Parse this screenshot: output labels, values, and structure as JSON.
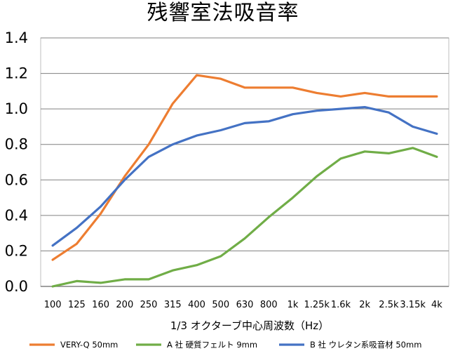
{
  "chart_data": {
    "type": "line",
    "title": "残響室法吸音率",
    "xlabel": "1/3 オクターブ中心周波数（Hz）",
    "ylabel": "",
    "categories": [
      "100",
      "125",
      "160",
      "200",
      "250",
      "315",
      "400",
      "500",
      "630",
      "800",
      "1k",
      "1.25k",
      "1.6k",
      "2k",
      "2.5k",
      "3.15k",
      "4k"
    ],
    "ylim": [
      0,
      1.4
    ],
    "yticks": [
      "0.0",
      "0.2",
      "0.4",
      "0.6",
      "0.8",
      "1.0",
      "1.2",
      "1.4"
    ],
    "grid": "horizontal",
    "legend_position": "bottom",
    "series": [
      {
        "name": "VERY-Q 50mm",
        "color": "#ED7D31",
        "values": [
          0.15,
          0.24,
          0.41,
          0.62,
          0.8,
          1.03,
          1.19,
          1.17,
          1.12,
          1.12,
          1.12,
          1.09,
          1.07,
          1.09,
          1.07,
          1.07,
          1.07
        ]
      },
      {
        "name": "A 社 硬質フェルト 9mm",
        "color": "#70AD47",
        "values": [
          0.0,
          0.03,
          0.02,
          0.04,
          0.04,
          0.09,
          0.12,
          0.17,
          0.27,
          0.39,
          0.5,
          0.62,
          0.72,
          0.76,
          0.75,
          0.78,
          0.73
        ]
      },
      {
        "name": "B 社 ウレタン系吸音材 50mm",
        "color": "#4472C4",
        "values": [
          0.23,
          0.33,
          0.45,
          0.6,
          0.73,
          0.8,
          0.85,
          0.88,
          0.92,
          0.93,
          0.97,
          0.99,
          1.0,
          1.01,
          0.98,
          0.9,
          0.86
        ]
      }
    ]
  }
}
